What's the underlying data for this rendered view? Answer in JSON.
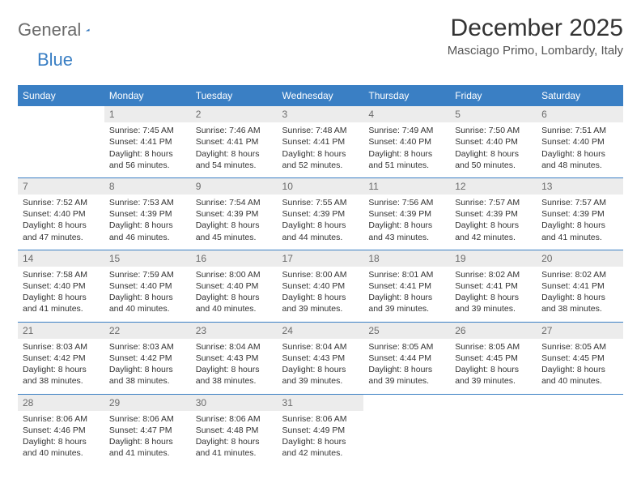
{
  "logo": {
    "word1": "General",
    "word2": "Blue"
  },
  "title": "December 2025",
  "location": "Masciago Primo, Lombardy, Italy",
  "colors": {
    "header_bg": "#3a7fc4",
    "header_text": "#ffffff",
    "daynum_bg": "#ececec",
    "daynum_text": "#6b6b6b",
    "border": "#3a7fc4"
  },
  "weekdays": [
    "Sunday",
    "Monday",
    "Tuesday",
    "Wednesday",
    "Thursday",
    "Friday",
    "Saturday"
  ],
  "weeks": [
    [
      {
        "n": "",
        "sr": "",
        "ss": "",
        "dl": ""
      },
      {
        "n": "1",
        "sr": "Sunrise: 7:45 AM",
        "ss": "Sunset: 4:41 PM",
        "dl": "Daylight: 8 hours and 56 minutes."
      },
      {
        "n": "2",
        "sr": "Sunrise: 7:46 AM",
        "ss": "Sunset: 4:41 PM",
        "dl": "Daylight: 8 hours and 54 minutes."
      },
      {
        "n": "3",
        "sr": "Sunrise: 7:48 AM",
        "ss": "Sunset: 4:41 PM",
        "dl": "Daylight: 8 hours and 52 minutes."
      },
      {
        "n": "4",
        "sr": "Sunrise: 7:49 AM",
        "ss": "Sunset: 4:40 PM",
        "dl": "Daylight: 8 hours and 51 minutes."
      },
      {
        "n": "5",
        "sr": "Sunrise: 7:50 AM",
        "ss": "Sunset: 4:40 PM",
        "dl": "Daylight: 8 hours and 50 minutes."
      },
      {
        "n": "6",
        "sr": "Sunrise: 7:51 AM",
        "ss": "Sunset: 4:40 PM",
        "dl": "Daylight: 8 hours and 48 minutes."
      }
    ],
    [
      {
        "n": "7",
        "sr": "Sunrise: 7:52 AM",
        "ss": "Sunset: 4:40 PM",
        "dl": "Daylight: 8 hours and 47 minutes."
      },
      {
        "n": "8",
        "sr": "Sunrise: 7:53 AM",
        "ss": "Sunset: 4:39 PM",
        "dl": "Daylight: 8 hours and 46 minutes."
      },
      {
        "n": "9",
        "sr": "Sunrise: 7:54 AM",
        "ss": "Sunset: 4:39 PM",
        "dl": "Daylight: 8 hours and 45 minutes."
      },
      {
        "n": "10",
        "sr": "Sunrise: 7:55 AM",
        "ss": "Sunset: 4:39 PM",
        "dl": "Daylight: 8 hours and 44 minutes."
      },
      {
        "n": "11",
        "sr": "Sunrise: 7:56 AM",
        "ss": "Sunset: 4:39 PM",
        "dl": "Daylight: 8 hours and 43 minutes."
      },
      {
        "n": "12",
        "sr": "Sunrise: 7:57 AM",
        "ss": "Sunset: 4:39 PM",
        "dl": "Daylight: 8 hours and 42 minutes."
      },
      {
        "n": "13",
        "sr": "Sunrise: 7:57 AM",
        "ss": "Sunset: 4:39 PM",
        "dl": "Daylight: 8 hours and 41 minutes."
      }
    ],
    [
      {
        "n": "14",
        "sr": "Sunrise: 7:58 AM",
        "ss": "Sunset: 4:40 PM",
        "dl": "Daylight: 8 hours and 41 minutes."
      },
      {
        "n": "15",
        "sr": "Sunrise: 7:59 AM",
        "ss": "Sunset: 4:40 PM",
        "dl": "Daylight: 8 hours and 40 minutes."
      },
      {
        "n": "16",
        "sr": "Sunrise: 8:00 AM",
        "ss": "Sunset: 4:40 PM",
        "dl": "Daylight: 8 hours and 40 minutes."
      },
      {
        "n": "17",
        "sr": "Sunrise: 8:00 AM",
        "ss": "Sunset: 4:40 PM",
        "dl": "Daylight: 8 hours and 39 minutes."
      },
      {
        "n": "18",
        "sr": "Sunrise: 8:01 AM",
        "ss": "Sunset: 4:41 PM",
        "dl": "Daylight: 8 hours and 39 minutes."
      },
      {
        "n": "19",
        "sr": "Sunrise: 8:02 AM",
        "ss": "Sunset: 4:41 PM",
        "dl": "Daylight: 8 hours and 39 minutes."
      },
      {
        "n": "20",
        "sr": "Sunrise: 8:02 AM",
        "ss": "Sunset: 4:41 PM",
        "dl": "Daylight: 8 hours and 38 minutes."
      }
    ],
    [
      {
        "n": "21",
        "sr": "Sunrise: 8:03 AM",
        "ss": "Sunset: 4:42 PM",
        "dl": "Daylight: 8 hours and 38 minutes."
      },
      {
        "n": "22",
        "sr": "Sunrise: 8:03 AM",
        "ss": "Sunset: 4:42 PM",
        "dl": "Daylight: 8 hours and 38 minutes."
      },
      {
        "n": "23",
        "sr": "Sunrise: 8:04 AM",
        "ss": "Sunset: 4:43 PM",
        "dl": "Daylight: 8 hours and 38 minutes."
      },
      {
        "n": "24",
        "sr": "Sunrise: 8:04 AM",
        "ss": "Sunset: 4:43 PM",
        "dl": "Daylight: 8 hours and 39 minutes."
      },
      {
        "n": "25",
        "sr": "Sunrise: 8:05 AM",
        "ss": "Sunset: 4:44 PM",
        "dl": "Daylight: 8 hours and 39 minutes."
      },
      {
        "n": "26",
        "sr": "Sunrise: 8:05 AM",
        "ss": "Sunset: 4:45 PM",
        "dl": "Daylight: 8 hours and 39 minutes."
      },
      {
        "n": "27",
        "sr": "Sunrise: 8:05 AM",
        "ss": "Sunset: 4:45 PM",
        "dl": "Daylight: 8 hours and 40 minutes."
      }
    ],
    [
      {
        "n": "28",
        "sr": "Sunrise: 8:06 AM",
        "ss": "Sunset: 4:46 PM",
        "dl": "Daylight: 8 hours and 40 minutes."
      },
      {
        "n": "29",
        "sr": "Sunrise: 8:06 AM",
        "ss": "Sunset: 4:47 PM",
        "dl": "Daylight: 8 hours and 41 minutes."
      },
      {
        "n": "30",
        "sr": "Sunrise: 8:06 AM",
        "ss": "Sunset: 4:48 PM",
        "dl": "Daylight: 8 hours and 41 minutes."
      },
      {
        "n": "31",
        "sr": "Sunrise: 8:06 AM",
        "ss": "Sunset: 4:49 PM",
        "dl": "Daylight: 8 hours and 42 minutes."
      },
      {
        "n": "",
        "sr": "",
        "ss": "",
        "dl": ""
      },
      {
        "n": "",
        "sr": "",
        "ss": "",
        "dl": ""
      },
      {
        "n": "",
        "sr": "",
        "ss": "",
        "dl": ""
      }
    ]
  ]
}
